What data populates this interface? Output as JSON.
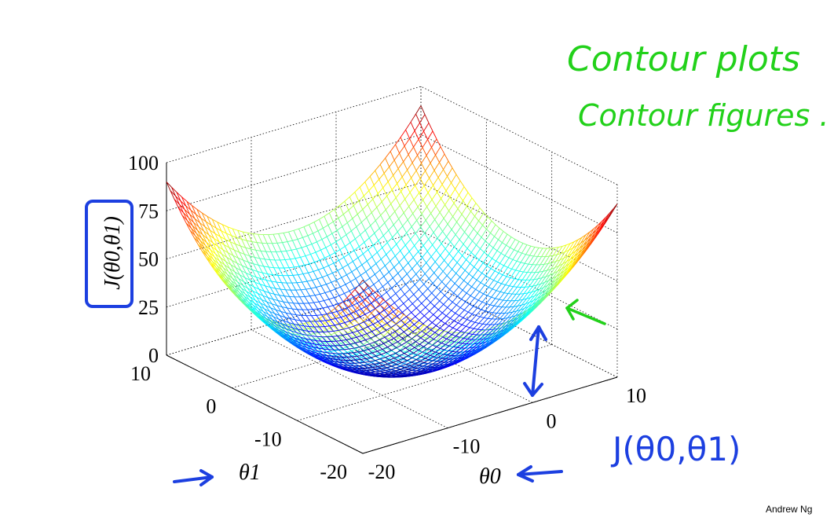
{
  "slide": {
    "annotations": {
      "line1": "Contour plots",
      "line2": "Contour figures .",
      "j_label": "J(θ0,θ1)"
    },
    "footer": "Andrew Ng"
  },
  "chart_data": {
    "type": "surface",
    "title": "",
    "zlabel": "J(θ0,θ1)",
    "xlabel": "θ0",
    "ylabel": "θ1",
    "xlim": [
      -20,
      10
    ],
    "ylim": [
      -20,
      10
    ],
    "zlim": [
      0,
      100
    ],
    "z_ticks": [
      "0",
      "25",
      "50",
      "75",
      "100"
    ],
    "x_ticks": [
      "-20",
      "-10",
      "0",
      "10"
    ],
    "y_ticks": [
      "-20",
      "-10",
      "0",
      "10"
    ],
    "grid": true,
    "colormap": "jet",
    "colors": {
      "annotation_green": "#22d11a",
      "annotation_blue": "#1c3fe0"
    }
  }
}
